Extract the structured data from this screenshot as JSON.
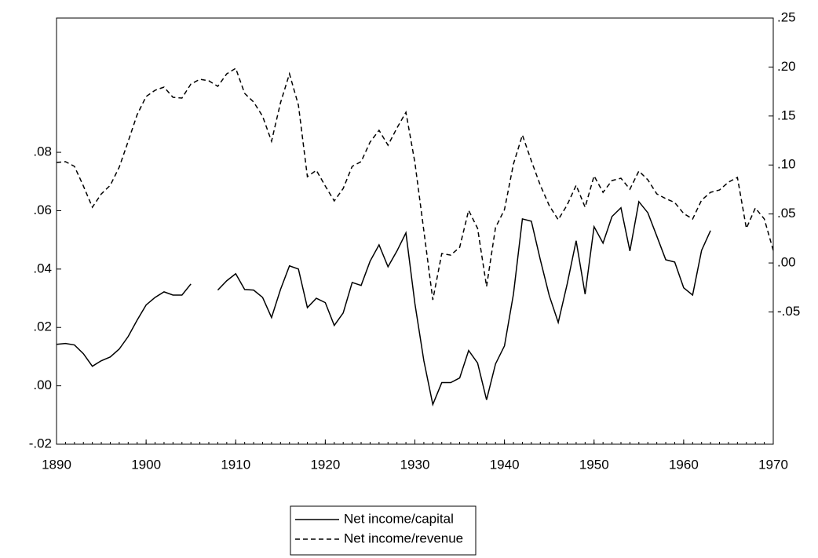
{
  "chart_data": {
    "type": "line",
    "x": [
      1890,
      1891,
      1892,
      1893,
      1894,
      1895,
      1896,
      1897,
      1898,
      1899,
      1900,
      1901,
      1902,
      1903,
      1904,
      1905,
      1906,
      1907,
      1908,
      1909,
      1910,
      1911,
      1912,
      1913,
      1914,
      1915,
      1916,
      1917,
      1918,
      1919,
      1920,
      1921,
      1922,
      1923,
      1924,
      1925,
      1926,
      1927,
      1928,
      1929,
      1930,
      1931,
      1932,
      1933,
      1934,
      1935,
      1936,
      1937,
      1938,
      1939,
      1940,
      1941,
      1942,
      1943,
      1944,
      1945,
      1946,
      1947,
      1948,
      1949,
      1950,
      1951,
      1952,
      1953,
      1954,
      1955,
      1956,
      1957,
      1958,
      1959,
      1960,
      1961,
      1962,
      1963,
      1964,
      1965,
      1966,
      1967,
      1968,
      1969,
      1970
    ],
    "series": [
      {
        "name": "Net income/capital",
        "color": "#000000",
        "line_style": "solid",
        "axis": "y",
        "values": [
          0.0142,
          0.0145,
          0.014,
          0.011,
          0.0067,
          0.0086,
          0.0099,
          0.0126,
          0.0169,
          0.0225,
          0.0277,
          0.0303,
          0.0322,
          0.0311,
          0.0311,
          0.0349,
          null,
          null,
          0.0328,
          0.036,
          0.0384,
          0.033,
          0.0328,
          0.0303,
          0.0234,
          0.033,
          0.0411,
          0.04,
          0.0268,
          0.03,
          0.0285,
          0.0207,
          0.025,
          0.0354,
          0.0344,
          0.0427,
          0.0483,
          0.0408,
          0.0462,
          0.0524,
          0.0282,
          0.0086,
          -0.0064,
          0.0011,
          0.0011,
          0.0027,
          0.0121,
          0.0078,
          -0.0048,
          0.0075,
          0.0137,
          0.0314,
          0.0572,
          0.0564,
          0.0432,
          0.0309,
          0.0217,
          0.0349,
          0.0497,
          0.0314,
          0.0545,
          0.0489,
          0.058,
          0.061,
          0.0462,
          0.0631,
          0.0593,
          0.0513,
          0.0432,
          0.0424,
          0.0336,
          0.0311,
          0.0464,
          0.0532,
          null,
          null,
          null,
          null,
          null,
          null,
          null
        ]
      },
      {
        "name": "Net income/revenue",
        "color": "#000000",
        "line_style": "dashed",
        "axis": "y2",
        "values": [
          0.1026,
          0.1034,
          0.0986,
          0.0785,
          0.0569,
          0.0705,
          0.0793,
          0.0978,
          0.1242,
          0.1514,
          0.1699,
          0.1763,
          0.1795,
          0.1691,
          0.1683,
          0.1827,
          0.1875,
          0.1859,
          0.1803,
          0.1931,
          0.1987,
          0.1731,
          0.1643,
          0.1498,
          0.1242,
          0.1635,
          0.1931,
          0.1611,
          0.0881,
          0.0946,
          0.0785,
          0.0633,
          0.0761,
          0.0986,
          0.1034,
          0.1234,
          0.1354,
          0.1202,
          0.1378,
          0.1538,
          0.1026,
          0.0329,
          -0.0377,
          0.0096,
          0.008,
          0.016,
          0.0537,
          0.0353,
          -0.024,
          0.0361,
          0.0545,
          0.101,
          0.1306,
          0.1042,
          0.0793,
          0.0585,
          0.0441,
          0.0593,
          0.0793,
          0.0569,
          0.0889,
          0.0721,
          0.0841,
          0.0865,
          0.0753,
          0.0938,
          0.0849,
          0.0705,
          0.0657,
          0.0617,
          0.0505,
          0.0449,
          0.0641,
          0.0721,
          0.0745,
          0.0825,
          0.0873,
          0.0353,
          0.0561,
          0.0449,
          0.0128
        ]
      }
    ],
    "xlim": [
      1890,
      1970
    ],
    "xticks": [
      1890,
      1900,
      1910,
      1920,
      1930,
      1940,
      1950,
      1960,
      1970
    ],
    "ylim": [
      -0.02,
      0.126
    ],
    "yticks": [
      {
        "value": -0.02,
        "label": "-.02"
      },
      {
        "value": 0,
        "label": ".00"
      },
      {
        "value": 0.02,
        "label": ".02"
      },
      {
        "value": 0.04,
        "label": ".04"
      },
      {
        "value": 0.06,
        "label": ".06"
      },
      {
        "value": 0.08,
        "label": ".08"
      }
    ],
    "y2lim": [
      -0.185,
      0.25
    ],
    "y2ticks": [
      {
        "value": -0.05,
        "label": "-.05"
      },
      {
        "value": 0,
        "label": ".00"
      },
      {
        "value": 0.05,
        "label": ".05"
      },
      {
        "value": 0.1,
        "label": ".10"
      },
      {
        "value": 0.15,
        "label": ".15"
      },
      {
        "value": 0.2,
        "label": ".20"
      },
      {
        "value": 0.25,
        "label": ".25"
      }
    ],
    "grid": false,
    "legend": "bottom"
  }
}
